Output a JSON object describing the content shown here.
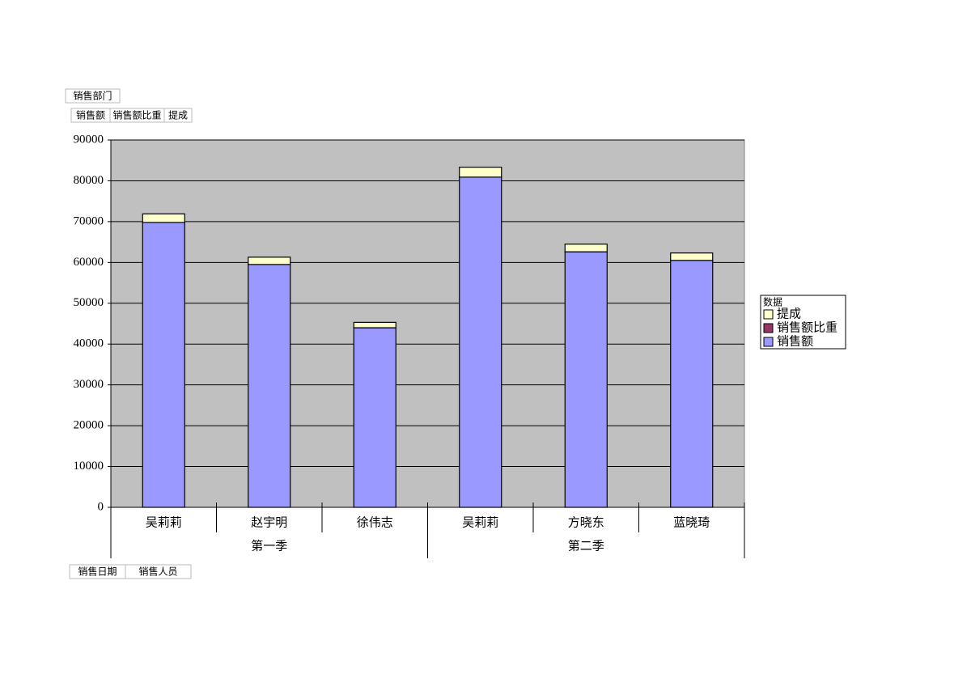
{
  "chart_data": {
    "type": "stacked_bar",
    "page_fields": [
      "销售部门"
    ],
    "row_fields": [
      "销售日期",
      "销售人员"
    ],
    "legend_title": "数据",
    "groups": [
      {
        "name": "第一季",
        "categories": [
          "吴莉莉",
          "赵宇明",
          "徐伟志"
        ]
      },
      {
        "name": "第二季",
        "categories": [
          "吴莉莉",
          "方晓东",
          "蓝晓琦"
        ]
      }
    ],
    "series": [
      {
        "name": "销售额",
        "color": "#9999ff",
        "values": [
          69800,
          59500,
          44000,
          80900,
          62600,
          60500
        ]
      },
      {
        "name": "销售额比重",
        "color": "#993366",
        "values": [
          0.185,
          0.158,
          0.117,
          0.214,
          0.166,
          0.16
        ]
      },
      {
        "name": "提成",
        "color": "#ffffcc",
        "values": [
          2094,
          1785,
          1320,
          2427,
          1878,
          1815
        ]
      }
    ],
    "ylim": [
      0,
      90000
    ],
    "yticks": [
      0,
      10000,
      20000,
      30000,
      40000,
      50000,
      60000,
      70000,
      80000,
      90000
    ],
    "grid": true,
    "legend": "right"
  }
}
